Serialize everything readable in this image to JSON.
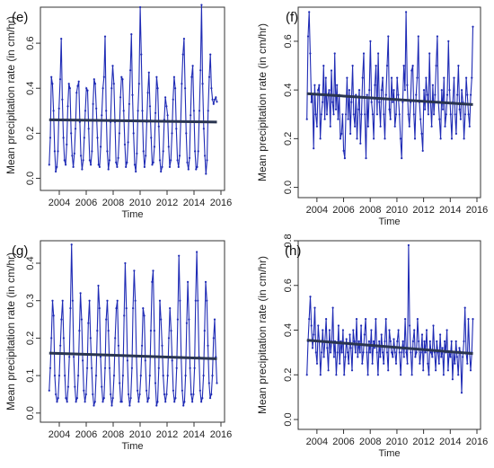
{
  "colors": {
    "series": "#1f2bb5",
    "trend": "#2a3550",
    "axis": "#333333"
  },
  "chart_data": [
    {
      "type": "line",
      "panel_label": "(e)",
      "xlabel": "Time",
      "ylabel": "Mean precipitation rate (in cm/hr)",
      "xlim": [
        2003.0,
        2016.0
      ],
      "ylim": [
        -0.03,
        0.76
      ],
      "x_ticks": [
        2004,
        2006,
        2008,
        2010,
        2012,
        2014,
        2016
      ],
      "y_ticks": [
        0.0,
        0.2,
        0.4,
        0.6
      ],
      "series": [
        {
          "values": [
            0.06,
            0.18,
            0.45,
            0.42,
            0.3,
            0.12,
            0.03,
            0.05,
            0.12,
            0.31,
            0.44,
            0.62,
            0.35,
            0.18,
            0.08,
            0.06,
            0.15,
            0.32,
            0.42,
            0.4,
            0.2,
            0.1,
            0.05,
            0.11,
            0.22,
            0.38,
            0.41,
            0.43,
            0.25,
            0.1,
            0.04,
            0.08,
            0.18,
            0.3,
            0.4,
            0.39,
            0.22,
            0.08,
            0.06,
            0.12,
            0.33,
            0.44,
            0.42,
            0.31,
            0.18,
            0.06,
            0.05,
            0.14,
            0.28,
            0.4,
            0.45,
            0.63,
            0.3,
            0.12,
            0.04,
            0.08,
            0.25,
            0.4,
            0.5,
            0.42,
            0.25,
            0.07,
            0.05,
            0.09,
            0.2,
            0.36,
            0.45,
            0.44,
            0.3,
            0.15,
            0.05,
            0.07,
            0.16,
            0.33,
            0.48,
            0.64,
            0.37,
            0.2,
            0.06,
            0.03,
            0.11,
            0.3,
            0.42,
            0.76,
            0.55,
            0.3,
            0.12,
            0.05,
            0.1,
            0.25,
            0.38,
            0.47,
            0.32,
            0.18,
            0.06,
            0.07,
            0.14,
            0.29,
            0.45,
            0.4,
            0.23,
            0.08,
            0.03,
            0.05,
            0.12,
            0.26,
            0.36,
            0.32,
            0.28,
            0.14,
            0.05,
            0.08,
            0.2,
            0.35,
            0.45,
            0.4,
            0.22,
            0.08,
            0.05,
            0.1,
            0.25,
            0.42,
            0.55,
            0.62,
            0.4,
            0.2,
            0.07,
            0.04,
            0.09,
            0.28,
            0.45,
            0.5,
            0.3,
            0.12,
            0.04,
            0.05,
            0.12,
            0.3,
            0.48,
            0.77,
            0.42,
            0.22,
            0.1,
            0.02,
            0.08,
            0.3,
            0.45,
            0.55,
            0.4,
            0.35,
            0.33,
            0.35,
            0.36,
            0.34
          ]
        }
      ],
      "trend": [
        0.26,
        0.25
      ]
    },
    {
      "type": "line",
      "panel_label": "(f)",
      "xlabel": "Time",
      "ylabel": "Mean precipitation rate (in cm/hr)",
      "xlim": [
        2003.0,
        2016.0
      ],
      "ylim": [
        -0.02,
        0.74
      ],
      "x_ticks": [
        2004,
        2006,
        2008,
        2010,
        2012,
        2014,
        2016
      ],
      "y_ticks": [
        0.0,
        0.2,
        0.4,
        0.6
      ],
      "series": [
        {
          "values": [
            0.28,
            0.62,
            0.72,
            0.55,
            0.35,
            0.38,
            0.16,
            0.42,
            0.3,
            0.25,
            0.4,
            0.42,
            0.2,
            0.3,
            0.35,
            0.5,
            0.28,
            0.45,
            0.3,
            0.38,
            0.4,
            0.25,
            0.48,
            0.35,
            0.3,
            0.55,
            0.32,
            0.42,
            0.28,
            0.38,
            0.2,
            0.22,
            0.3,
            0.15,
            0.12,
            0.3,
            0.45,
            0.28,
            0.4,
            0.22,
            0.35,
            0.5,
            0.3,
            0.25,
            0.38,
            0.2,
            0.32,
            0.4,
            0.18,
            0.3,
            0.45,
            0.55,
            0.3,
            0.12,
            0.38,
            0.25,
            0.4,
            0.6,
            0.35,
            0.3,
            0.2,
            0.42,
            0.5,
            0.3,
            0.55,
            0.35,
            0.25,
            0.4,
            0.45,
            0.3,
            0.2,
            0.38,
            0.5,
            0.62,
            0.32,
            0.28,
            0.45,
            0.35,
            0.4,
            0.25,
            0.3,
            0.45,
            0.38,
            0.3,
            0.2,
            0.12,
            0.35,
            0.5,
            0.4,
            0.72,
            0.42,
            0.3,
            0.25,
            0.35,
            0.48,
            0.5,
            0.3,
            0.2,
            0.38,
            0.45,
            0.62,
            0.35,
            0.28,
            0.22,
            0.15,
            0.4,
            0.32,
            0.45,
            0.38,
            0.3,
            0.55,
            0.35,
            0.25,
            0.42,
            0.3,
            0.38,
            0.5,
            0.62,
            0.35,
            0.28,
            0.2,
            0.4,
            0.32,
            0.45,
            0.25,
            0.3,
            0.38,
            0.6,
            0.4,
            0.3,
            0.2,
            0.35,
            0.45,
            0.3,
            0.22,
            0.38,
            0.5,
            0.32,
            0.28,
            0.4,
            0.35,
            0.2,
            0.3,
            0.45,
            0.38,
            0.3,
            0.25,
            0.38,
            0.45,
            0.66
          ]
        }
      ],
      "trend": [
        0.385,
        0.34
      ]
    },
    {
      "type": "line",
      "panel_label": "(g)",
      "xlabel": "Time",
      "ylabel": "Mean precipitation rate (in cm/hr)",
      "xlim": [
        2003.0,
        2016.0
      ],
      "ylim": [
        -0.01,
        0.46
      ],
      "x_ticks": [
        2004,
        2006,
        2008,
        2010,
        2012,
        2014,
        2016
      ],
      "y_ticks": [
        0.0,
        0.1,
        0.2,
        0.3,
        0.4
      ],
      "series": [
        {
          "values": [
            0.06,
            0.12,
            0.2,
            0.3,
            0.26,
            0.1,
            0.05,
            0.03,
            0.04,
            0.1,
            0.18,
            0.25,
            0.3,
            0.2,
            0.1,
            0.04,
            0.03,
            0.07,
            0.15,
            0.28,
            0.45,
            0.3,
            0.15,
            0.07,
            0.03,
            0.04,
            0.1,
            0.22,
            0.32,
            0.25,
            0.14,
            0.06,
            0.03,
            0.05,
            0.12,
            0.24,
            0.3,
            0.2,
            0.12,
            0.05,
            0.02,
            0.03,
            0.1,
            0.22,
            0.34,
            0.28,
            0.15,
            0.07,
            0.03,
            0.04,
            0.12,
            0.25,
            0.3,
            0.22,
            0.12,
            0.05,
            0.02,
            0.04,
            0.1,
            0.2,
            0.28,
            0.3,
            0.18,
            0.08,
            0.03,
            0.03,
            0.1,
            0.26,
            0.4,
            0.28,
            0.14,
            0.05,
            0.02,
            0.04,
            0.12,
            0.28,
            0.38,
            0.3,
            0.15,
            0.06,
            0.03,
            0.05,
            0.1,
            0.18,
            0.28,
            0.26,
            0.14,
            0.06,
            0.03,
            0.04,
            0.1,
            0.22,
            0.35,
            0.38,
            0.22,
            0.08,
            0.02,
            0.03,
            0.12,
            0.3,
            0.25,
            0.18,
            0.1,
            0.05,
            0.03,
            0.05,
            0.1,
            0.2,
            0.28,
            0.22,
            0.14,
            0.06,
            0.03,
            0.04,
            0.12,
            0.25,
            0.42,
            0.3,
            0.15,
            0.06,
            0.02,
            0.03,
            0.1,
            0.24,
            0.35,
            0.25,
            0.12,
            0.05,
            0.03,
            0.05,
            0.12,
            0.3,
            0.43,
            0.3,
            0.15,
            0.06,
            0.03,
            0.04,
            0.1,
            0.22,
            0.35,
            0.3,
            0.18,
            0.08,
            0.04,
            0.05,
            0.1,
            0.2,
            0.25,
            0.15,
            0.08
          ]
        }
      ],
      "trend": [
        0.16,
        0.145
      ]
    },
    {
      "type": "line",
      "panel_label": "(h)",
      "xlabel": "Time",
      "ylabel": "Mean precipitation rate (in cm/hr)",
      "xlim": [
        2003.0,
        2016.0
      ],
      "ylim": [
        -0.02,
        0.8
      ],
      "x_ticks": [
        2004,
        2006,
        2008,
        2010,
        2012,
        2014,
        2016
      ],
      "y_ticks": [
        0.0,
        0.2,
        0.4,
        0.6,
        0.8
      ],
      "series": [
        {
          "values": [
            0.2,
            0.35,
            0.45,
            0.55,
            0.42,
            0.32,
            0.38,
            0.5,
            0.3,
            0.25,
            0.42,
            0.35,
            0.2,
            0.3,
            0.4,
            0.28,
            0.35,
            0.45,
            0.32,
            0.22,
            0.4,
            0.3,
            0.35,
            0.5,
            0.28,
            0.35,
            0.2,
            0.3,
            0.42,
            0.25,
            0.35,
            0.3,
            0.4,
            0.2,
            0.28,
            0.36,
            0.3,
            0.25,
            0.38,
            0.32,
            0.22,
            0.4,
            0.35,
            0.3,
            0.45,
            0.28,
            0.35,
            0.3,
            0.42,
            0.25,
            0.3,
            0.38,
            0.45,
            0.3,
            0.2,
            0.35,
            0.3,
            0.4,
            0.25,
            0.35,
            0.32,
            0.45,
            0.3,
            0.2,
            0.35,
            0.28,
            0.38,
            0.3,
            0.25,
            0.35,
            0.45,
            0.3,
            0.22,
            0.4,
            0.35,
            0.3,
            0.28,
            0.36,
            0.3,
            0.25,
            0.35,
            0.4,
            0.3,
            0.2,
            0.3,
            0.35,
            0.28,
            0.45,
            0.3,
            0.25,
            0.78,
            0.42,
            0.3,
            0.2,
            0.35,
            0.4,
            0.28,
            0.3,
            0.45,
            0.35,
            0.25,
            0.3,
            0.38,
            0.22,
            0.35,
            0.3,
            0.4,
            0.25,
            0.2,
            0.35,
            0.3,
            0.28,
            0.42,
            0.3,
            0.22,
            0.35,
            0.3,
            0.25,
            0.38,
            0.28,
            0.32,
            0.2,
            0.35,
            0.3,
            0.4,
            0.22,
            0.3,
            0.28,
            0.35,
            0.18,
            0.3,
            0.25,
            0.35,
            0.28,
            0.2,
            0.32,
            0.3,
            0.12,
            0.28,
            0.35,
            0.5,
            0.3,
            0.25,
            0.45,
            0.3,
            0.22,
            0.3,
            0.45
          ]
        }
      ],
      "trend": [
        0.355,
        0.295
      ]
    }
  ]
}
